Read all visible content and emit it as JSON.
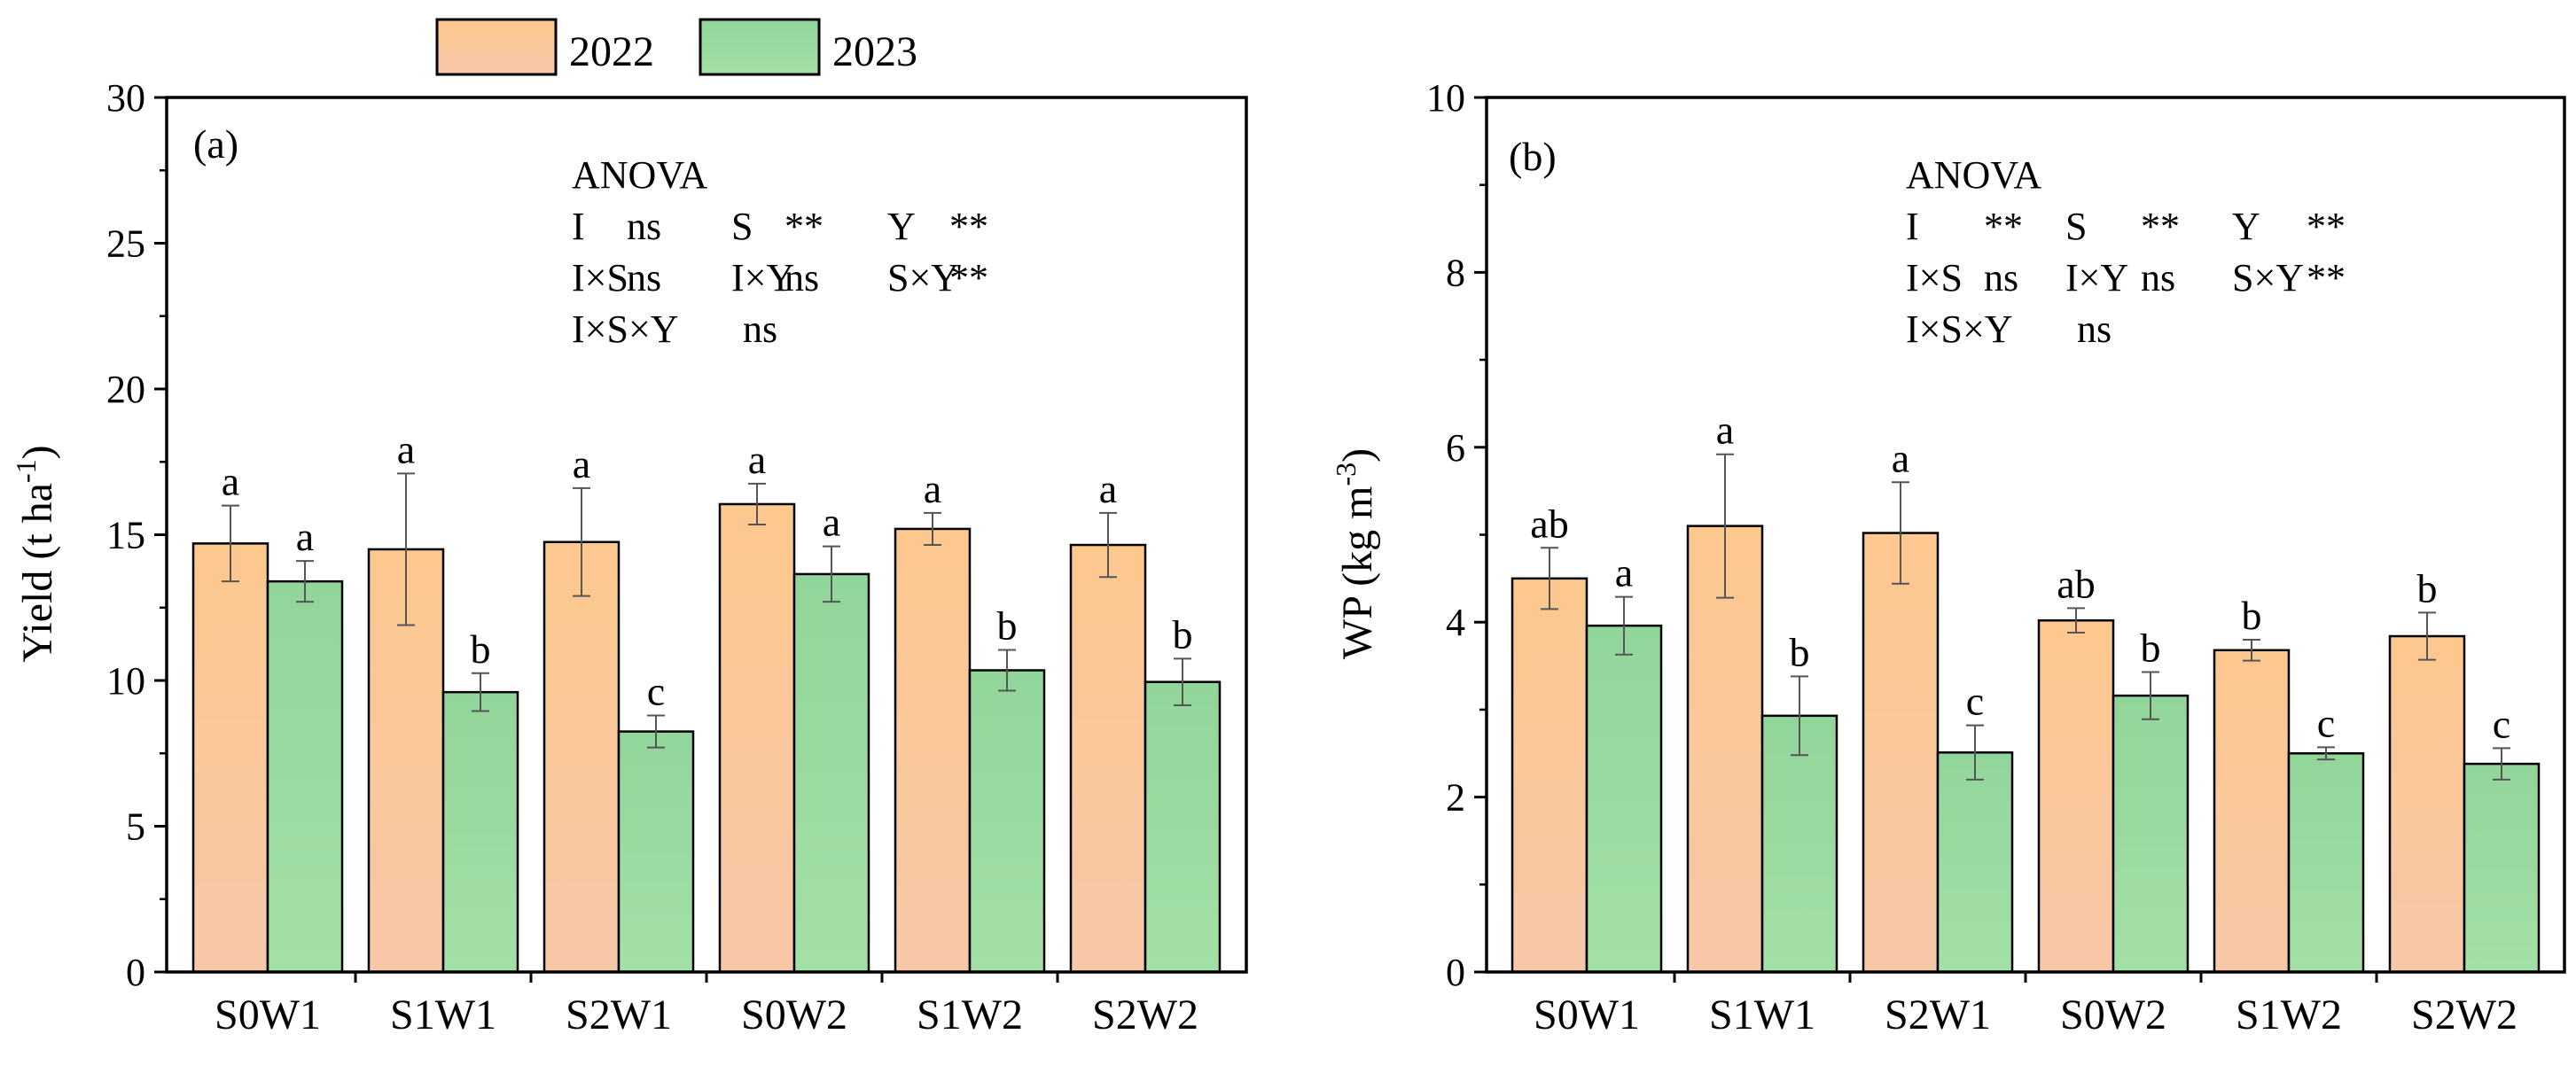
{
  "chart_data": [
    {
      "type": "bar",
      "panel_label": "(a)",
      "ylabel": "Yield (t ha",
      "ylabel_sup": "-1",
      "ylabel_tail": ")",
      "ylim": [
        0,
        30
      ],
      "yticks": [
        "0",
        "5",
        "10",
        "15",
        "20",
        "25",
        "30"
      ],
      "categories": [
        "S0W1",
        "S1W1",
        "S2W1",
        "S0W2",
        "S1W2",
        "S2W2"
      ],
      "series": [
        {
          "name": "2022",
          "color": "#fcc88e",
          "values": [
            14.7,
            14.5,
            14.75,
            16.05,
            15.2,
            14.65
          ],
          "errors": [
            1.3,
            2.6,
            1.85,
            0.7,
            0.55,
            1.1
          ],
          "letters": [
            "a",
            "a",
            "a",
            "a",
            "a",
            "a"
          ]
        },
        {
          "name": "2023",
          "color": "#92d59b",
          "values": [
            13.4,
            9.6,
            8.25,
            13.65,
            10.35,
            9.95
          ],
          "errors": [
            0.7,
            0.65,
            0.55,
            0.95,
            0.7,
            0.8
          ],
          "letters": [
            "a",
            "b",
            "c",
            "a",
            "b",
            "b"
          ]
        }
      ],
      "anova": {
        "title": "ANOVA",
        "rows": [
          [
            "I",
            "ns",
            "S",
            "**",
            "Y",
            "**"
          ],
          [
            "I×S",
            "ns",
            "I×Y",
            "ns",
            "S×Y",
            "**"
          ],
          [
            "I×S×Y",
            "ns"
          ]
        ]
      }
    },
    {
      "type": "bar",
      "panel_label": "(b)",
      "ylabel": "WP (kg m",
      "ylabel_sup": "-3",
      "ylabel_tail": ")",
      "ylim": [
        0,
        10
      ],
      "yticks": [
        "0",
        "2",
        "4",
        "6",
        "8",
        "10"
      ],
      "categories": [
        "S0W1",
        "S1W1",
        "S2W1",
        "S0W2",
        "S1W2",
        "S2W2"
      ],
      "series": [
        {
          "name": "2022",
          "color": "#fcc88e",
          "values": [
            4.5,
            5.1,
            5.02,
            4.02,
            3.68,
            3.84
          ],
          "errors": [
            0.35,
            0.82,
            0.58,
            0.14,
            0.12,
            0.27
          ],
          "letters": [
            "ab",
            "a",
            "a",
            "ab",
            "b",
            "b"
          ]
        },
        {
          "name": "2023",
          "color": "#92d59b",
          "values": [
            3.96,
            2.93,
            2.51,
            3.16,
            2.5,
            2.38
          ],
          "errors": [
            0.33,
            0.45,
            0.31,
            0.27,
            0.07,
            0.18
          ],
          "letters": [
            "a",
            "b",
            "c",
            "b",
            "c",
            "c"
          ]
        }
      ],
      "anova": {
        "title": "ANOVA",
        "rows": [
          [
            "I",
            "**",
            "S",
            "**",
            "Y",
            "**"
          ],
          [
            "I×S",
            "ns",
            "I×Y",
            "ns",
            "S×Y",
            "**"
          ],
          [
            "I×S×Y",
            "ns"
          ]
        ]
      }
    }
  ],
  "legend": {
    "items": [
      {
        "label": "2022",
        "color": "#fcc88e"
      },
      {
        "label": "2023",
        "color": "#92d59b"
      }
    ]
  }
}
